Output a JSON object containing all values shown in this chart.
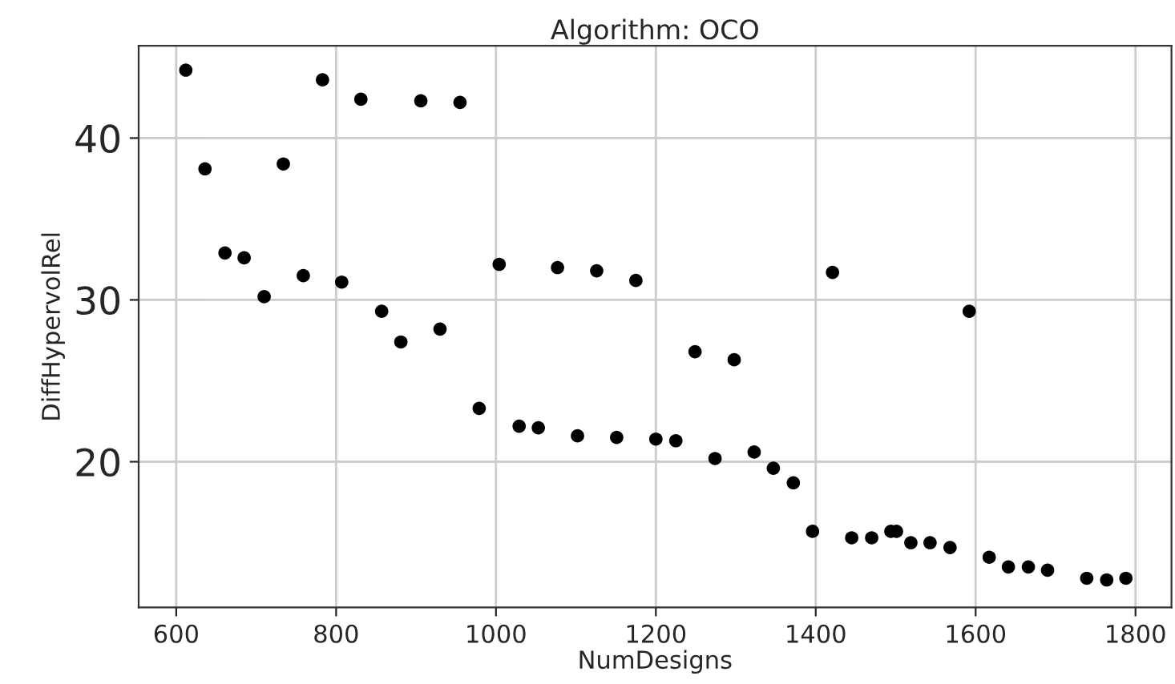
{
  "chart_data": {
    "type": "scatter",
    "title": "Algorithm: OCO",
    "xlabel": "NumDesigns",
    "ylabel": "DiffHypervolRel",
    "x": [
      612,
      636,
      661,
      685,
      710,
      734,
      759,
      783,
      807,
      831,
      857,
      881,
      906,
      930,
      955,
      979,
      1004,
      1029,
      1053,
      1077,
      1102,
      1126,
      1151,
      1175,
      1200,
      1225,
      1249,
      1274,
      1298,
      1323,
      1347,
      1372,
      1396,
      1421,
      1445,
      1470,
      1494,
      1501,
      1519,
      1543,
      1568,
      1592,
      1617,
      1641,
      1666,
      1690,
      1739,
      1764,
      1788
    ],
    "series": [
      {
        "color": "#000000",
        "values": [
          44.2,
          38.1,
          32.9,
          32.6,
          30.2,
          38.4,
          31.5,
          43.6,
          31.1,
          42.4,
          29.3,
          27.4,
          42.3,
          28.2,
          42.2,
          23.3,
          32.2,
          22.2,
          22.1,
          32.0,
          21.6,
          31.8,
          21.5,
          31.2,
          21.4,
          21.3,
          26.8,
          20.2,
          26.3,
          20.6,
          19.6,
          18.7,
          15.7,
          31.7,
          15.3,
          15.3,
          15.7,
          15.7,
          15.0,
          15.0,
          14.7,
          29.3,
          14.1,
          13.5,
          13.5,
          13.3,
          12.8,
          12.7,
          12.8
        ]
      }
    ],
    "xlim": [
      553,
      1845
    ],
    "ylim": [
      11.0,
      45.7
    ],
    "xticks": [
      600,
      800,
      1000,
      1200,
      1400,
      1600,
      1800
    ],
    "yticks": [
      20,
      30,
      40
    ],
    "grid": true,
    "marker": "circle",
    "legend": false
  }
}
